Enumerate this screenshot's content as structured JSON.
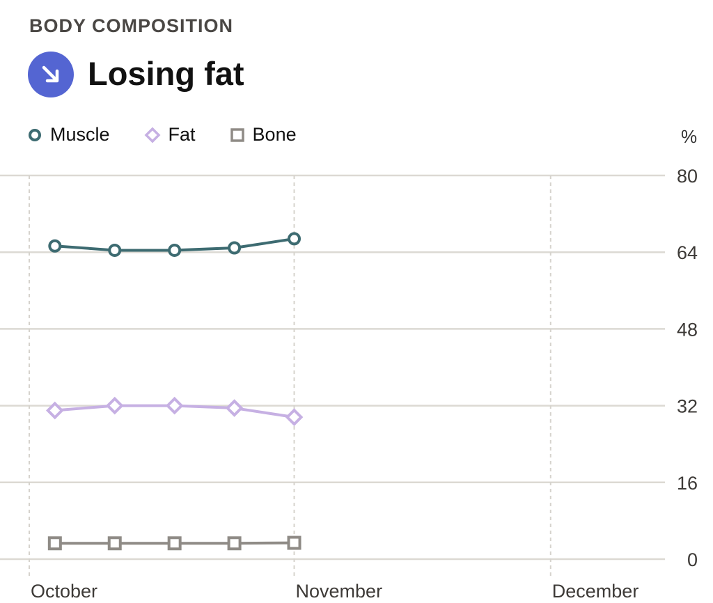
{
  "header": {
    "section_label": "BODY COMPOSITION",
    "headline": "Losing fat",
    "trend_icon": "arrow-down-right-icon",
    "trend_color": "#5465d2"
  },
  "legend": {
    "items": [
      {
        "label": "Muscle",
        "marker": "circle",
        "color": "#3d6b71"
      },
      {
        "label": "Fat",
        "marker": "diamond",
        "color": "#c6b0e3"
      },
      {
        "label": "Bone",
        "marker": "square",
        "color": "#8f8b86"
      }
    ]
  },
  "chart_data": {
    "type": "line",
    "ylabel": "%",
    "ylim": [
      0,
      80
    ],
    "yticks": [
      0,
      16,
      32,
      48,
      64,
      80
    ],
    "x_labels": [
      "October",
      "November",
      "December"
    ],
    "x_range": [
      "2023-10-01",
      "2023-12-20"
    ],
    "x_label_dates": [
      "2023-10-01",
      "2023-11-01",
      "2023-12-01"
    ],
    "grid": true,
    "legend_position": "top-left",
    "series": [
      {
        "name": "Muscle",
        "color": "#3d6b71",
        "marker": "circle",
        "x": [
          "2023-10-04",
          "2023-10-11",
          "2023-10-18",
          "2023-10-25",
          "2023-11-01"
        ],
        "values": [
          65.3,
          64.4,
          64.4,
          64.9,
          66.8
        ]
      },
      {
        "name": "Fat",
        "color": "#c6b0e3",
        "marker": "diamond",
        "x": [
          "2023-10-04",
          "2023-10-11",
          "2023-10-18",
          "2023-10-25",
          "2023-11-01"
        ],
        "values": [
          31.0,
          32.0,
          32.0,
          31.5,
          29.6
        ]
      },
      {
        "name": "Bone",
        "color": "#8f8b86",
        "marker": "square",
        "x": [
          "2023-10-04",
          "2023-10-11",
          "2023-10-18",
          "2023-10-25",
          "2023-11-01"
        ],
        "values": [
          3.3,
          3.3,
          3.3,
          3.3,
          3.4
        ]
      }
    ]
  }
}
